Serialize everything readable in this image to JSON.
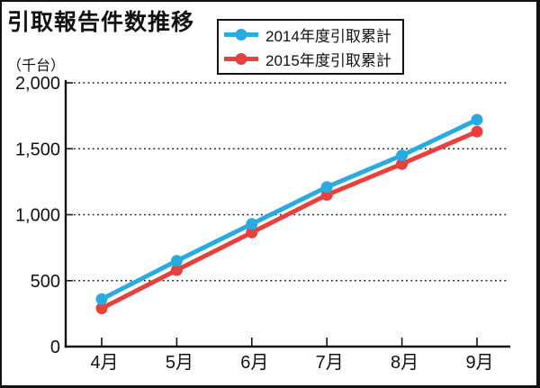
{
  "page": {
    "title": "引取報告件数推移",
    "unit_label": "（千台）"
  },
  "chart_data": {
    "type": "line",
    "title": "引取報告件数推移",
    "ylabel": "（千台）",
    "categories": [
      "4月",
      "5月",
      "6月",
      "7月",
      "8月",
      "9月"
    ],
    "series": [
      {
        "name": "2014年度引取累計",
        "color": "#29ABE2",
        "values": [
          360,
          650,
          930,
          1210,
          1450,
          1720
        ]
      },
      {
        "name": "2015年度引取累計",
        "color": "#E8403D",
        "values": [
          290,
          580,
          865,
          1150,
          1385,
          1630
        ]
      }
    ],
    "ylim": [
      0,
      2000
    ],
    "yticks": {
      "values": [
        0,
        500,
        1000,
        1500,
        2000
      ],
      "labels": [
        "0",
        "500",
        "1,000",
        "1,500",
        "2,000"
      ]
    },
    "grid": "horizontal-dotted",
    "legend_position": "top-right",
    "marker": "circle",
    "line_width": 5,
    "units": "thousand-vehicles"
  },
  "colors": {
    "axis": "#111111",
    "grid": "#1a1a1a",
    "background": "#ffffff",
    "frame_border": "#111111",
    "text": "#111111"
  }
}
